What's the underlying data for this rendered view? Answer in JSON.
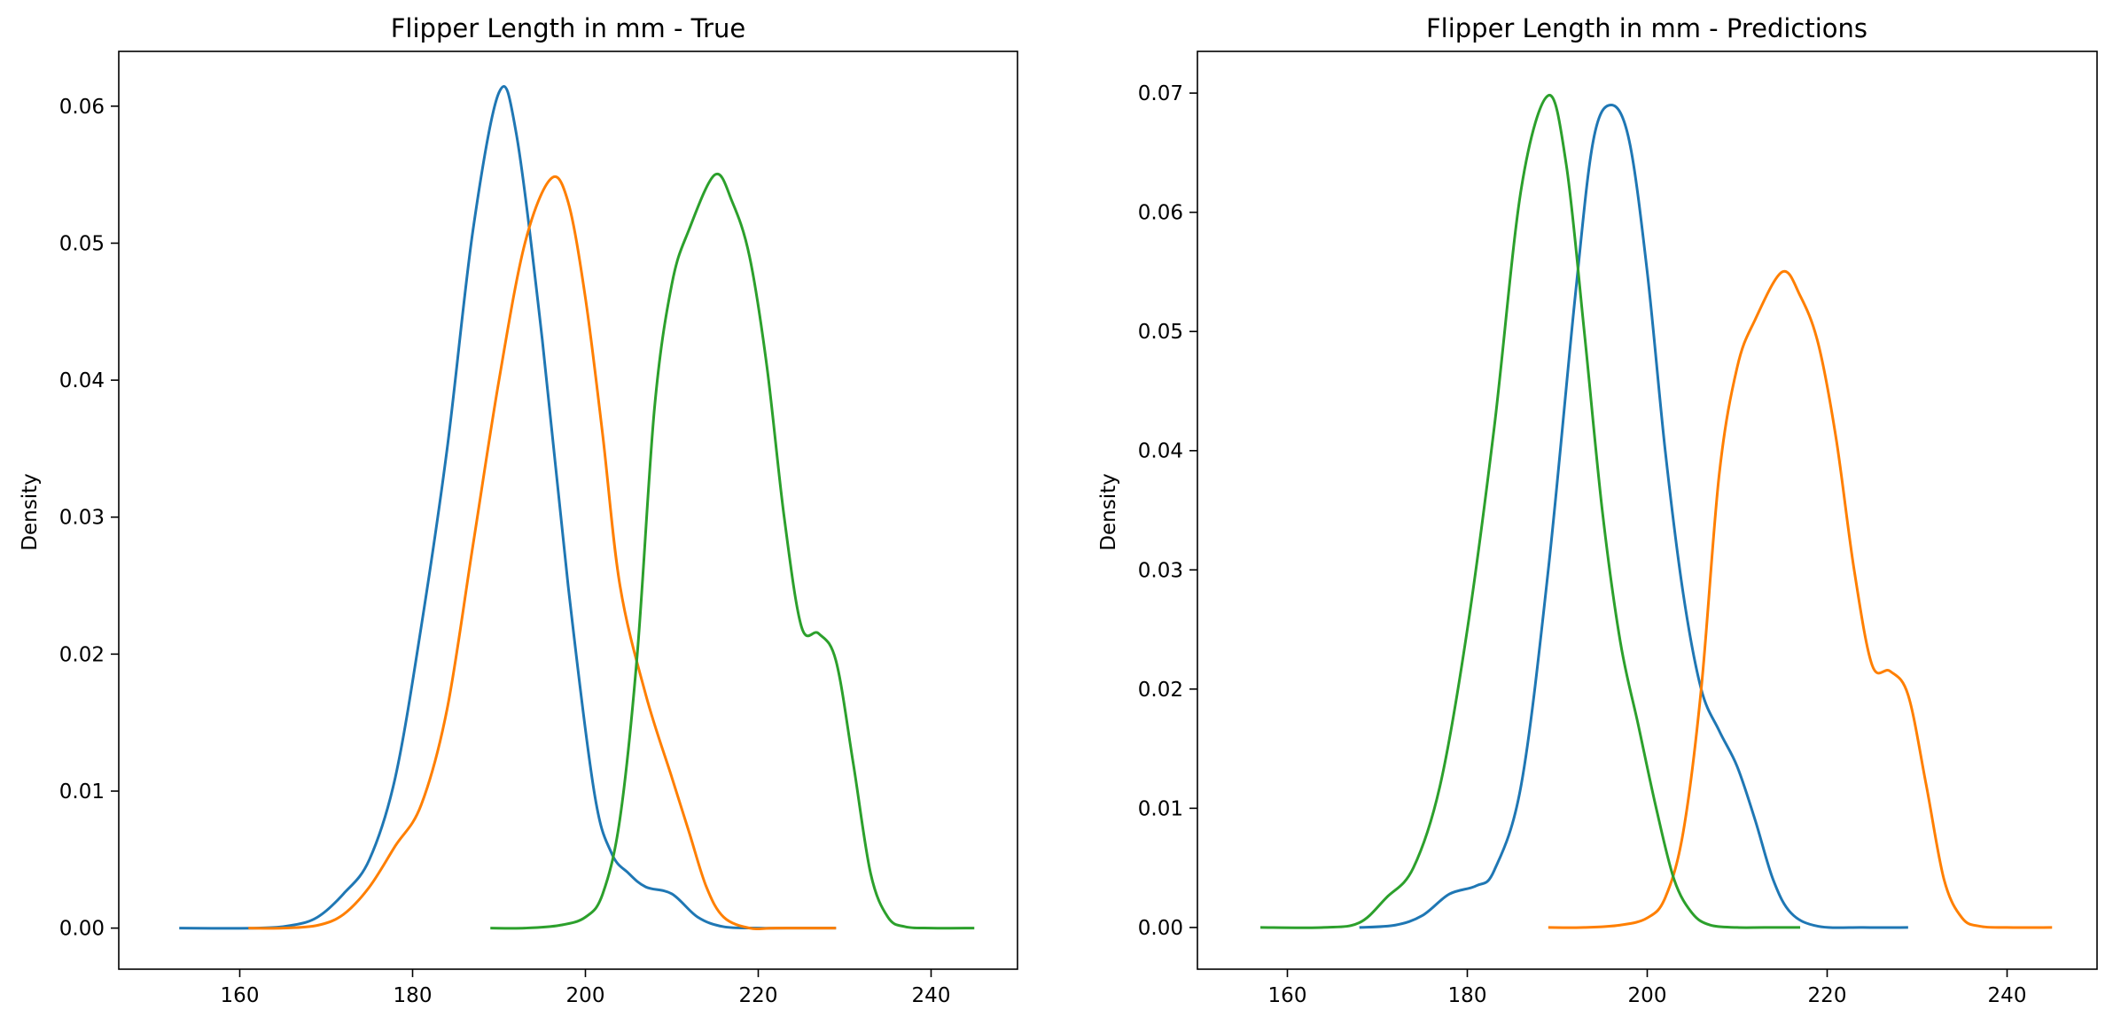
{
  "chart_data": [
    {
      "type": "line",
      "title": "Flipper Length in mm - True",
      "xlabel": "",
      "ylabel": "Density",
      "xlim": [
        146,
        250
      ],
      "ylim": [
        -0.003,
        0.064
      ],
      "xticks": [
        160,
        180,
        200,
        220,
        240
      ],
      "yticks": [
        0.0,
        0.01,
        0.02,
        0.03,
        0.04,
        0.05,
        0.06
      ],
      "ytick_decimals": 2,
      "grid": false,
      "series": [
        {
          "color": "#1f77b4",
          "x": [
            153,
            162,
            166,
            169,
            172,
            175,
            178,
            181,
            184,
            187,
            190,
            192,
            195,
            198,
            201,
            203,
            205,
            207,
            210,
            213,
            216,
            220,
            225,
            229
          ],
          "y": [
            0.0,
            0.0,
            0.0002,
            0.0008,
            0.0025,
            0.005,
            0.011,
            0.022,
            0.035,
            0.051,
            0.061,
            0.058,
            0.043,
            0.025,
            0.01,
            0.0055,
            0.004,
            0.003,
            0.0025,
            0.0008,
            0.0001,
            0.0,
            0.0,
            0.0
          ]
        },
        {
          "color": "#ff7f00",
          "x": [
            161,
            165,
            169,
            172,
            175,
            178,
            181,
            184,
            187,
            190,
            193,
            196,
            198,
            200,
            202,
            204,
            207,
            210,
            212,
            214,
            216,
            219,
            222,
            229
          ],
          "y": [
            0.0,
            0.0,
            0.0002,
            0.001,
            0.003,
            0.006,
            0.009,
            0.016,
            0.028,
            0.04,
            0.05,
            0.0547,
            0.053,
            0.046,
            0.036,
            0.025,
            0.017,
            0.011,
            0.007,
            0.003,
            0.0008,
            0.0,
            0.0,
            0.0
          ]
        },
        {
          "color": "#2ca02c",
          "x": [
            189,
            193,
            197,
            200,
            202,
            204,
            206,
            208,
            210,
            212,
            215,
            217,
            219,
            221,
            223,
            225,
            227,
            229,
            231,
            233,
            235,
            237,
            240,
            245
          ],
          "y": [
            0.0,
            0.0,
            0.0002,
            0.0008,
            0.0025,
            0.008,
            0.02,
            0.038,
            0.047,
            0.051,
            0.055,
            0.053,
            0.049,
            0.041,
            0.03,
            0.022,
            0.0215,
            0.0195,
            0.012,
            0.004,
            0.0008,
            0.0001,
            0.0,
            0.0
          ]
        }
      ]
    },
    {
      "type": "line",
      "title": "Flipper Length in mm - Predictions",
      "xlabel": "",
      "ylabel": "Density",
      "xlim": [
        150,
        250
      ],
      "ylim": [
        -0.0035,
        0.0735
      ],
      "xticks": [
        160,
        180,
        200,
        220,
        240
      ],
      "yticks": [
        0.0,
        0.01,
        0.02,
        0.03,
        0.04,
        0.05,
        0.06,
        0.07
      ],
      "ytick_decimals": 2,
      "grid": false,
      "series": [
        {
          "color": "#1f77b4",
          "x": [
            168,
            172,
            175,
            178,
            181,
            183,
            186,
            189,
            192,
            194,
            196,
            198,
            200,
            202,
            204,
            206,
            208,
            210,
            212,
            214,
            216,
            219,
            224,
            229
          ],
          "y": [
            0.0,
            0.0002,
            0.001,
            0.0028,
            0.0035,
            0.0048,
            0.012,
            0.03,
            0.053,
            0.066,
            0.069,
            0.066,
            0.055,
            0.04,
            0.028,
            0.02,
            0.0165,
            0.0135,
            0.009,
            0.004,
            0.0012,
            0.0001,
            0.0,
            0.0
          ]
        },
        {
          "color": "#ff7f00",
          "x": [
            189,
            193,
            197,
            200,
            202,
            204,
            206,
            208,
            210,
            212,
            215,
            217,
            219,
            221,
            223,
            225,
            227,
            229,
            231,
            233,
            235,
            237,
            240,
            245
          ],
          "y": [
            0.0,
            0.0,
            0.0002,
            0.0008,
            0.0025,
            0.008,
            0.02,
            0.038,
            0.047,
            0.051,
            0.055,
            0.053,
            0.049,
            0.041,
            0.03,
            0.022,
            0.0215,
            0.0195,
            0.012,
            0.004,
            0.0008,
            0.0001,
            0.0,
            0.0
          ]
        },
        {
          "color": "#2ca02c",
          "x": [
            157,
            164,
            168,
            171,
            174,
            177,
            180,
            183,
            186,
            189,
            191,
            193,
            195,
            197,
            199,
            201,
            203,
            205,
            207,
            210,
            213,
            217
          ],
          "y": [
            0.0,
            0.0,
            0.0004,
            0.0025,
            0.005,
            0.012,
            0.025,
            0.042,
            0.062,
            0.0698,
            0.064,
            0.05,
            0.035,
            0.024,
            0.017,
            0.01,
            0.004,
            0.0012,
            0.0002,
            0.0,
            0.0,
            0.0
          ]
        }
      ]
    }
  ]
}
